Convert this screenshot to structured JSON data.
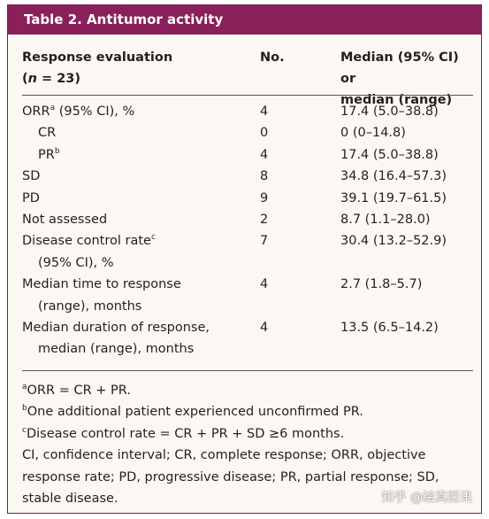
{
  "title": "Table 2. Antitumor activity",
  "table": {
    "header": [
      [
        {
          "parts": [
            {
              "text": "Response evaluation"
            }
          ]
        },
        {
          "parts": [
            {
              "text": "("
            },
            {
              "italic": "n"
            },
            {
              "text": " = 23)"
            }
          ]
        }
      ],
      [
        {
          "parts": [
            {
              "text": "No."
            }
          ]
        }
      ],
      [
        {
          "parts": [
            {
              "text": "Median (95% CI) or"
            }
          ]
        },
        {
          "parts": [
            {
              "text": "median (range)"
            }
          ]
        }
      ]
    ],
    "rows": [
      {
        "label": [
          {
            "parts": [
              {
                "text": "ORR"
              },
              {
                "sup": "a"
              },
              {
                "text": " (95% CI), %"
              }
            ]
          }
        ],
        "no": 4,
        "median": "17.4 (5.0–38.8)"
      },
      {
        "label": [
          {
            "indent": true,
            "parts": [
              {
                "text": "CR"
              }
            ]
          }
        ],
        "no": 0,
        "median": "0 (0–14.8)"
      },
      {
        "label": [
          {
            "indent": true,
            "parts": [
              {
                "text": "PR"
              },
              {
                "sup": "b"
              }
            ]
          }
        ],
        "no": 4,
        "median": "17.4 (5.0–38.8)"
      },
      {
        "label": [
          {
            "parts": [
              {
                "text": "SD"
              }
            ]
          }
        ],
        "no": 8,
        "median": "34.8 (16.4–57.3)"
      },
      {
        "label": [
          {
            "parts": [
              {
                "text": "PD"
              }
            ]
          }
        ],
        "no": 9,
        "median": "39.1 (19.7–61.5)"
      },
      {
        "label": [
          {
            "parts": [
              {
                "text": "Not assessed"
              }
            ]
          }
        ],
        "no": 2,
        "median": "8.7 (1.1–28.0)"
      },
      {
        "label": [
          {
            "parts": [
              {
                "text": "Disease control rate"
              },
              {
                "sup": "c"
              }
            ]
          },
          {
            "indent": true,
            "parts": [
              {
                "text": "(95% CI), %"
              }
            ]
          }
        ],
        "no": 7,
        "median": "30.4 (13.2–52.9)"
      },
      {
        "label": [
          {
            "parts": [
              {
                "text": "Median time to response"
              }
            ]
          },
          {
            "indent": true,
            "parts": [
              {
                "text": "(range), months"
              }
            ]
          }
        ],
        "no": 4,
        "median": "2.7 (1.8–5.7)"
      },
      {
        "label": [
          {
            "parts": [
              {
                "text": "Median duration of response,"
              }
            ]
          },
          {
            "indent": true,
            "parts": [
              {
                "text": "median (range), months"
              }
            ]
          }
        ],
        "no": 4,
        "median": "13.5 (6.5–14.2)"
      }
    ]
  },
  "footnotes": [
    [
      {
        "sup": "a"
      },
      {
        "text": "ORR = CR + PR."
      }
    ],
    [
      {
        "sup": "b"
      },
      {
        "text": "One additional patient experienced unconfirmed PR."
      }
    ],
    [
      {
        "sup": "c"
      },
      {
        "text": "Disease control rate = CR + PR + SD ≥6 months."
      }
    ],
    [
      {
        "text": "CI, confidence interval; CR, complete response; ORR, objective response rate; PD, progressive disease; PR, partial response; SD, stable disease."
      }
    ]
  ],
  "watermark": "知乎 @绘真医讯"
}
